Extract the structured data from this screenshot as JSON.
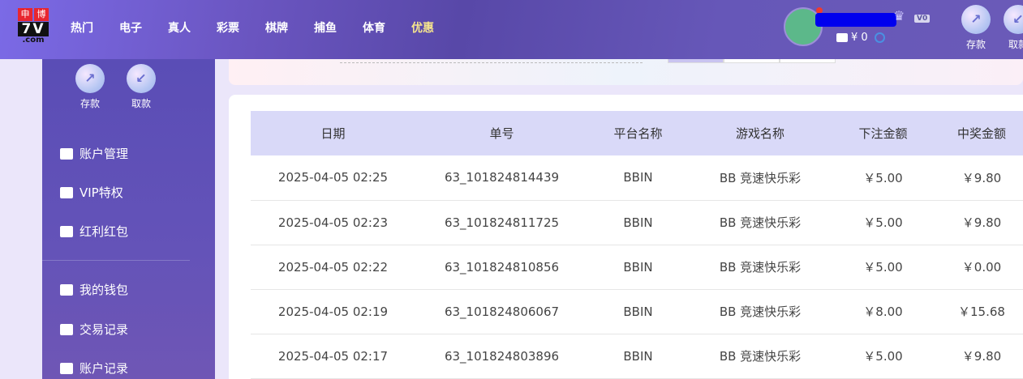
{
  "header": {
    "logo": {
      "top_left": "申",
      "top_right": "博",
      "main": "7V",
      "sub": ".com"
    },
    "nav": [
      "热门",
      "电子",
      "真人",
      "彩票",
      "棋牌",
      "捕鱼",
      "体育",
      "优惠"
    ],
    "vip_level": "V0",
    "balance": "¥ 0",
    "deposit_label": "存款",
    "withdraw_label": "取款"
  },
  "sidebar": {
    "deposit_label": "存款",
    "withdraw_label": "取款",
    "items": [
      {
        "label": "账户管理",
        "icon": "card-icon"
      },
      {
        "label": "VIP特权",
        "icon": "diamond-icon"
      },
      {
        "label": "红利红包",
        "icon": "envelope-icon"
      },
      {
        "label": "我的钱包",
        "icon": "wallet-icon"
      },
      {
        "label": "交易记录",
        "icon": "document-icon"
      },
      {
        "label": "账户记录",
        "icon": "document-icon"
      }
    ]
  },
  "table": {
    "headers": [
      "日期",
      "单号",
      "平台名称",
      "游戏名称",
      "下注金额",
      "中奖金额"
    ],
    "rows": [
      [
        "2025-04-05 02:25",
        "63_101824814439",
        "BBIN",
        "BB 竞速快乐彩",
        "￥5.00",
        "￥9.80"
      ],
      [
        "2025-04-05 02:23",
        "63_101824811725",
        "BBIN",
        "BB 竞速快乐彩",
        "￥5.00",
        "￥9.80"
      ],
      [
        "2025-04-05 02:22",
        "63_101824810856",
        "BBIN",
        "BB 竞速快乐彩",
        "￥5.00",
        "￥0.00"
      ],
      [
        "2025-04-05 02:19",
        "63_101824806067",
        "BBIN",
        "BB 竞速快乐彩",
        "￥8.00",
        "￥15.68"
      ],
      [
        "2025-04-05 02:17",
        "63_101824803896",
        "BBIN",
        "BB 竞速快乐彩",
        "￥5.00",
        "￥9.80"
      ]
    ]
  }
}
